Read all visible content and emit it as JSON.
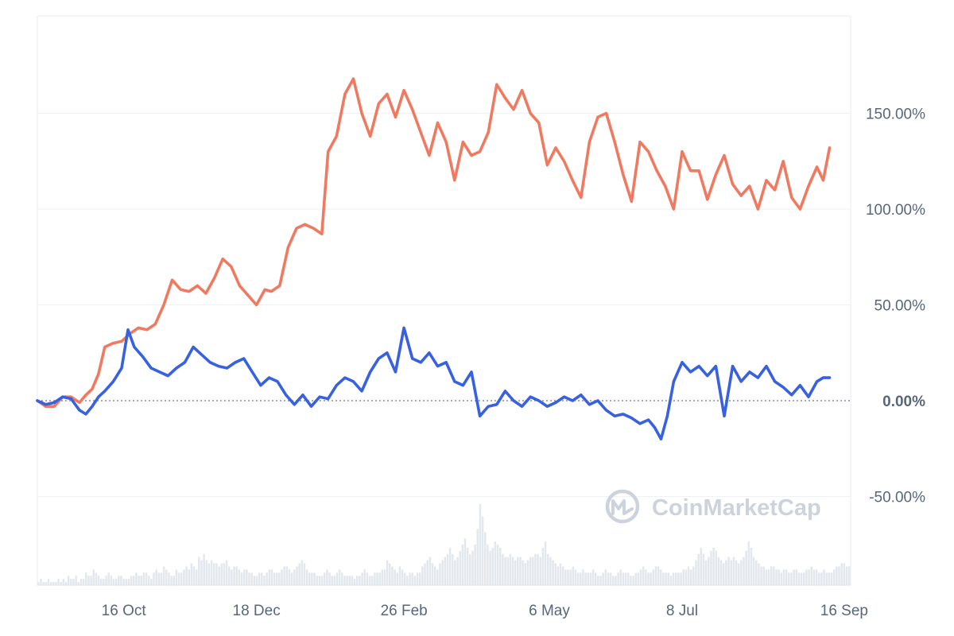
{
  "chart_data": {
    "type": "line",
    "title": "",
    "xlabel": "",
    "ylabel": "",
    "ylim": [
      -100,
      200
    ],
    "y_axis_side": "right",
    "y_ticks": [
      {
        "value": 150,
        "label": "150.00%"
      },
      {
        "value": 100,
        "label": "100.00%"
      },
      {
        "value": 50,
        "label": "50.00%"
      },
      {
        "value": 0,
        "label": "0.00%"
      },
      {
        "value": -50,
        "label": "-50.00%"
      }
    ],
    "x_ticks": [
      {
        "day": 10,
        "label": "16 Oct"
      },
      {
        "day": 73,
        "label": "18 Dec"
      },
      {
        "day": 143,
        "label": "26 Feb"
      },
      {
        "day": 212,
        "label": "6 May"
      },
      {
        "day": 275,
        "label": "8 Jul"
      },
      {
        "day": 345,
        "label": "16 Sep"
      }
    ],
    "x_range": [
      -31,
      355
    ],
    "baseline": 0,
    "grid": true,
    "colors": {
      "series_orange": "#f07a5f",
      "series_blue": "#3861e1",
      "grid": "#eff2f5",
      "volume": "#e3e8ee",
      "watermark": "#cdd3dd"
    },
    "series": [
      {
        "color": "#f07a5f",
        "points": [
          [
            -31,
            0
          ],
          [
            -27,
            -3
          ],
          [
            -23,
            -3
          ],
          [
            -19,
            2
          ],
          [
            -15,
            2
          ],
          [
            -11,
            -1
          ],
          [
            -8,
            3
          ],
          [
            -5,
            6
          ],
          [
            -2,
            14
          ],
          [
            1,
            28
          ],
          [
            5,
            30
          ],
          [
            9,
            31
          ],
          [
            13,
            35
          ],
          [
            17,
            38
          ],
          [
            21,
            37
          ],
          [
            25,
            40
          ],
          [
            29,
            50
          ],
          [
            33,
            63
          ],
          [
            37,
            58
          ],
          [
            41,
            57
          ],
          [
            45,
            60
          ],
          [
            49,
            56
          ],
          [
            53,
            64
          ],
          [
            57,
            74
          ],
          [
            61,
            70
          ],
          [
            65,
            60
          ],
          [
            69,
            55
          ],
          [
            73,
            50
          ],
          [
            77,
            58
          ],
          [
            80,
            57
          ],
          [
            84,
            60
          ],
          [
            88,
            80
          ],
          [
            92,
            90
          ],
          [
            96,
            92
          ],
          [
            100,
            90
          ],
          [
            104,
            87
          ],
          [
            107,
            130
          ],
          [
            111,
            138
          ],
          [
            115,
            160
          ],
          [
            119,
            168
          ],
          [
            123,
            150
          ],
          [
            127,
            138
          ],
          [
            131,
            155
          ],
          [
            135,
            160
          ],
          [
            139,
            148
          ],
          [
            143,
            162
          ],
          [
            147,
            152
          ],
          [
            151,
            140
          ],
          [
            155,
            128
          ],
          [
            159,
            145
          ],
          [
            163,
            135
          ],
          [
            167,
            115
          ],
          [
            171,
            135
          ],
          [
            175,
            128
          ],
          [
            179,
            130
          ],
          [
            183,
            140
          ],
          [
            187,
            165
          ],
          [
            191,
            158
          ],
          [
            195,
            152
          ],
          [
            199,
            162
          ],
          [
            203,
            150
          ],
          [
            207,
            145
          ],
          [
            211,
            123
          ],
          [
            215,
            132
          ],
          [
            219,
            125
          ],
          [
            223,
            115
          ],
          [
            227,
            106
          ],
          [
            231,
            135
          ],
          [
            235,
            148
          ],
          [
            239,
            150
          ],
          [
            243,
            135
          ],
          [
            247,
            118
          ],
          [
            251,
            104
          ],
          [
            255,
            135
          ],
          [
            259,
            130
          ],
          [
            263,
            120
          ],
          [
            267,
            112
          ],
          [
            271,
            100
          ],
          [
            275,
            130
          ],
          [
            279,
            120
          ],
          [
            283,
            120
          ],
          [
            287,
            105
          ],
          [
            291,
            118
          ],
          [
            295,
            128
          ],
          [
            299,
            113
          ],
          [
            303,
            107
          ],
          [
            307,
            112
          ],
          [
            311,
            100
          ],
          [
            315,
            115
          ],
          [
            319,
            110
          ],
          [
            323,
            125
          ],
          [
            327,
            106
          ],
          [
            331,
            100
          ],
          [
            335,
            112
          ],
          [
            339,
            122
          ],
          [
            342,
            115
          ],
          [
            345,
            132
          ]
        ]
      },
      {
        "color": "#3861e1",
        "points": [
          [
            -31,
            0
          ],
          [
            -27,
            -2
          ],
          [
            -23,
            -1
          ],
          [
            -19,
            2
          ],
          [
            -15,
            1
          ],
          [
            -11,
            -5
          ],
          [
            -8,
            -7
          ],
          [
            -5,
            -3
          ],
          [
            -2,
            2
          ],
          [
            1,
            5
          ],
          [
            5,
            10
          ],
          [
            9,
            17
          ],
          [
            12,
            37
          ],
          [
            15,
            28
          ],
          [
            19,
            23
          ],
          [
            23,
            17
          ],
          [
            27,
            15
          ],
          [
            31,
            13
          ],
          [
            35,
            17
          ],
          [
            39,
            20
          ],
          [
            43,
            28
          ],
          [
            47,
            24
          ],
          [
            51,
            20
          ],
          [
            55,
            18
          ],
          [
            59,
            17
          ],
          [
            63,
            20
          ],
          [
            67,
            22
          ],
          [
            71,
            15
          ],
          [
            75,
            8
          ],
          [
            79,
            12
          ],
          [
            83,
            10
          ],
          [
            87,
            3
          ],
          [
            91,
            -2
          ],
          [
            95,
            3
          ],
          [
            99,
            -3
          ],
          [
            103,
            2
          ],
          [
            107,
            1
          ],
          [
            111,
            8
          ],
          [
            115,
            12
          ],
          [
            119,
            10
          ],
          [
            123,
            5
          ],
          [
            127,
            15
          ],
          [
            131,
            22
          ],
          [
            135,
            25
          ],
          [
            139,
            15
          ],
          [
            143,
            38
          ],
          [
            147,
            22
          ],
          [
            151,
            20
          ],
          [
            155,
            25
          ],
          [
            159,
            18
          ],
          [
            163,
            20
          ],
          [
            167,
            10
          ],
          [
            171,
            8
          ],
          [
            175,
            15
          ],
          [
            179,
            -8
          ],
          [
            183,
            -3
          ],
          [
            187,
            -2
          ],
          [
            191,
            5
          ],
          [
            195,
            0
          ],
          [
            199,
            -3
          ],
          [
            203,
            2
          ],
          [
            207,
            0
          ],
          [
            211,
            -3
          ],
          [
            215,
            -1
          ],
          [
            219,
            2
          ],
          [
            223,
            0
          ],
          [
            227,
            3
          ],
          [
            231,
            -2
          ],
          [
            235,
            0
          ],
          [
            239,
            -5
          ],
          [
            243,
            -8
          ],
          [
            247,
            -7
          ],
          [
            251,
            -9
          ],
          [
            255,
            -12
          ],
          [
            259,
            -10
          ],
          [
            262,
            -14
          ],
          [
            265,
            -20
          ],
          [
            268,
            -8
          ],
          [
            271,
            10
          ],
          [
            275,
            20
          ],
          [
            279,
            15
          ],
          [
            283,
            18
          ],
          [
            287,
            13
          ],
          [
            291,
            18
          ],
          [
            295,
            -8
          ],
          [
            299,
            18
          ],
          [
            303,
            10
          ],
          [
            307,
            15
          ],
          [
            311,
            12
          ],
          [
            315,
            18
          ],
          [
            319,
            10
          ],
          [
            323,
            7
          ],
          [
            327,
            3
          ],
          [
            331,
            8
          ],
          [
            335,
            2
          ],
          [
            339,
            10
          ],
          [
            342,
            12
          ],
          [
            345,
            12
          ]
        ]
      }
    ],
    "volume_series": [
      1,
      2,
      1,
      1,
      2,
      1,
      1,
      1,
      2,
      1,
      2,
      1,
      3,
      2,
      2,
      3,
      1,
      2,
      2,
      4,
      3,
      3,
      5,
      4,
      3,
      2,
      2,
      3,
      4,
      3,
      2,
      2,
      3,
      3,
      2,
      2,
      2,
      3,
      3,
      4,
      3,
      3,
      4,
      4,
      3,
      2,
      4,
      5,
      4,
      4,
      6,
      5,
      4,
      3,
      3,
      5,
      4,
      4,
      5,
      6,
      5,
      7,
      6,
      5,
      9,
      8,
      10,
      8,
      7,
      8,
      7,
      7,
      6,
      7,
      7,
      8,
      6,
      5,
      6,
      6,
      5,
      4,
      5,
      5,
      4,
      4,
      3,
      3,
      4,
      4,
      3,
      4,
      5,
      5,
      4,
      4,
      4,
      5,
      6,
      6,
      5,
      4,
      5,
      6,
      7,
      8,
      7,
      5,
      4,
      4,
      4,
      3,
      3,
      3,
      4,
      5,
      4,
      3,
      3,
      4,
      5,
      4,
      3,
      3,
      3,
      3,
      2,
      3,
      3,
      4,
      5,
      4,
      3,
      3,
      4,
      4,
      4,
      5,
      5,
      8,
      7,
      6,
      5,
      4,
      6,
      5,
      4,
      3,
      4,
      4,
      3,
      4,
      4,
      6,
      7,
      8,
      9,
      7,
      6,
      5,
      7,
      8,
      9,
      10,
      12,
      10,
      8,
      9,
      11,
      13,
      15,
      12,
      10,
      11,
      13,
      18,
      26,
      22,
      17,
      13,
      11,
      12,
      14,
      13,
      12,
      10,
      9,
      9,
      10,
      9,
      8,
      9,
      9,
      8,
      7,
      8,
      9,
      9,
      10,
      10,
      9,
      12,
      14,
      10,
      9,
      8,
      7,
      6,
      7,
      6,
      5,
      5,
      5,
      6,
      5,
      4,
      4,
      5,
      4,
      4,
      4,
      5,
      4,
      3,
      3,
      4,
      5,
      4,
      4,
      3,
      3,
      4,
      5,
      4,
      4,
      4,
      3,
      3,
      4,
      4,
      5,
      6,
      5,
      4,
      4,
      5,
      6,
      6,
      5,
      4,
      4,
      4,
      3,
      4,
      4,
      4,
      4,
      5,
      5,
      6,
      5,
      6,
      8,
      10,
      12,
      10,
      8,
      9,
      11,
      12,
      11,
      9,
      8,
      7,
      8,
      9,
      8,
      9,
      8,
      7,
      8,
      9,
      11,
      14,
      12,
      9,
      8,
      7,
      6,
      6,
      5,
      5,
      6,
      6,
      5,
      5,
      4,
      5,
      5,
      4,
      4,
      5,
      5,
      4,
      4,
      4,
      5,
      5,
      6,
      5,
      5,
      4,
      4,
      5,
      4,
      4,
      4,
      5,
      6,
      6,
      7,
      7,
      6,
      6
    ],
    "watermark": "CoinMarketCap"
  }
}
